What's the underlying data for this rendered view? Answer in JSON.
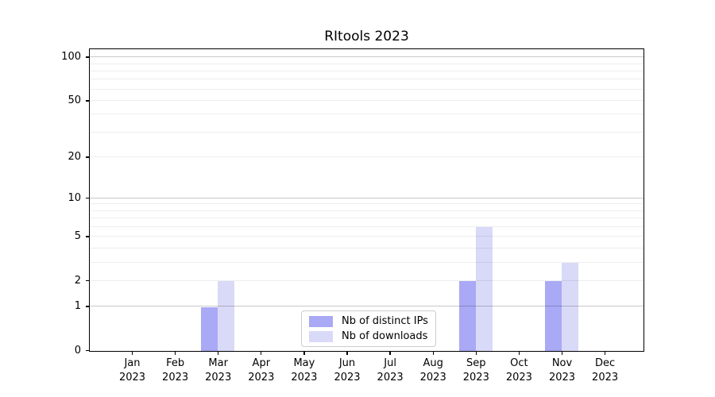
{
  "chart_data": {
    "type": "bar",
    "title": "RItools 2023",
    "x_month_labels": [
      "Jan",
      "Feb",
      "Mar",
      "Apr",
      "May",
      "Jun",
      "Jul",
      "Aug",
      "Sep",
      "Oct",
      "Nov",
      "Dec"
    ],
    "x_year_label": "2023",
    "series": [
      {
        "name": "Nb of distinct IPs",
        "color": "#a9a9f6",
        "values": [
          0,
          0,
          1,
          0,
          0,
          0,
          0,
          0,
          2,
          0,
          2,
          0
        ]
      },
      {
        "name": "Nb of downloads",
        "color": "#d9d9f8",
        "values": [
          0,
          0,
          2,
          0,
          0,
          0,
          0,
          0,
          6,
          0,
          3,
          0
        ]
      }
    ],
    "y_ticks": [
      0,
      1,
      2,
      5,
      10,
      20,
      50,
      100
    ],
    "y_scale": "log1p",
    "y_max": 113,
    "gridlines": {
      "major": [
        1,
        10,
        100
      ],
      "minor": [
        2,
        3,
        4,
        5,
        6,
        7,
        8,
        9,
        20,
        30,
        40,
        50,
        60,
        70,
        80,
        90
      ]
    },
    "legend_position": "lower center",
    "colors": {
      "grid_major": "#c9c9c9",
      "grid_minor": "#ededed",
      "spine": "#000000",
      "text": "#000000",
      "background": "#ffffff"
    }
  }
}
